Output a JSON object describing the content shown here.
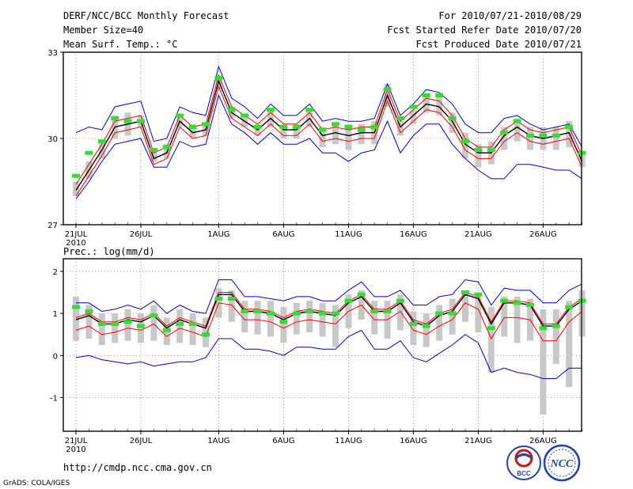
{
  "header": {
    "title": "DERF/NCC/BCC Monthly Forecast",
    "member_size": "Member Size=40",
    "variable": "Mean Surf. Temp.: °C",
    "period": "For 2010/07/21-2010/08/29",
    "fcst_started": "Fcst Started Refer Date 2010/07/20",
    "fcst_produced": "Fcst Produced Date 2010/07/21"
  },
  "footer": {
    "url": "http://cmdp.ncc.cma.gov.cn",
    "grads": "GrADS: COLA/IGES",
    "logo_bcc": "BCC",
    "logo_ncc": "NCC"
  },
  "colors": {
    "mean": "#000000",
    "spread": "#ff0000",
    "envelope": "#0000cc",
    "obs": "#33dd33",
    "box": "#c8c8c8"
  },
  "chart_data": [
    {
      "type": "line",
      "title": "Mean Surf. Temp.: °C",
      "ylim": [
        27,
        33
      ],
      "yticks": [
        27,
        30,
        33
      ],
      "x_tick_labels": [
        "21JUL",
        "26JUL",
        "1AUG",
        "6AUG",
        "11AUG",
        "16AUG",
        "21AUG",
        "26AUG"
      ],
      "x_tick_days": [
        0,
        5,
        11,
        16,
        21,
        26,
        31,
        36
      ],
      "x_year_label": "2010",
      "days": 40,
      "series": [
        {
          "name": "ensemble mean",
          "values": [
            28.2,
            28.9,
            29.6,
            30.4,
            30.5,
            30.6,
            29.3,
            29.5,
            30.6,
            30.2,
            30.3,
            32.0,
            30.9,
            30.6,
            30.3,
            30.7,
            30.3,
            30.3,
            30.7,
            30.1,
            30.2,
            30.1,
            30.2,
            30.2,
            31.5,
            30.4,
            30.8,
            31.2,
            31.1,
            30.6,
            29.8,
            29.5,
            29.5,
            30.1,
            30.4,
            30.1,
            30.0,
            30.1,
            30.2,
            29.2
          ]
        },
        {
          "name": "upper spread",
          "values": [
            28.4,
            29.1,
            29.8,
            30.6,
            30.7,
            30.8,
            29.5,
            29.7,
            30.8,
            30.4,
            30.5,
            32.2,
            31.1,
            30.8,
            30.5,
            30.9,
            30.5,
            30.5,
            30.9,
            30.3,
            30.4,
            30.3,
            30.4,
            30.4,
            31.7,
            30.6,
            31.0,
            31.4,
            31.3,
            30.8,
            30.0,
            29.7,
            29.7,
            30.3,
            30.6,
            30.3,
            30.2,
            30.3,
            30.4,
            29.4
          ]
        },
        {
          "name": "lower spread",
          "values": [
            28.0,
            28.7,
            29.4,
            30.2,
            30.3,
            30.4,
            29.1,
            29.3,
            30.4,
            30.0,
            30.1,
            31.8,
            30.7,
            30.4,
            30.1,
            30.5,
            30.1,
            30.1,
            30.5,
            29.9,
            30.0,
            29.9,
            30.0,
            30.0,
            31.3,
            30.2,
            30.6,
            31.0,
            30.9,
            30.4,
            29.6,
            29.3,
            29.3,
            29.9,
            30.2,
            29.9,
            29.8,
            29.9,
            30.0,
            29.0
          ]
        },
        {
          "name": "member max",
          "values": [
            30.2,
            30.4,
            30.3,
            31.1,
            31.2,
            31.3,
            29.9,
            30.0,
            31.1,
            30.9,
            30.8,
            32.5,
            31.4,
            31.1,
            30.7,
            31.2,
            30.8,
            30.8,
            31.2,
            30.6,
            30.7,
            30.6,
            30.6,
            30.7,
            31.9,
            30.8,
            31.2,
            31.7,
            31.6,
            31.2,
            30.5,
            30.2,
            30.2,
            30.7,
            30.8,
            30.5,
            30.3,
            30.4,
            30.5,
            29.7
          ]
        },
        {
          "name": "member min",
          "values": [
            27.9,
            28.5,
            29.2,
            29.8,
            29.9,
            30.0,
            29.0,
            29.0,
            29.9,
            29.7,
            29.8,
            31.5,
            30.5,
            30.2,
            29.8,
            30.2,
            29.8,
            29.8,
            30.0,
            29.5,
            29.5,
            29.2,
            29.5,
            29.6,
            30.6,
            29.5,
            30.1,
            30.5,
            30.5,
            29.8,
            29.3,
            28.9,
            28.6,
            28.6,
            29.1,
            29.1,
            29.0,
            28.9,
            28.9,
            28.6
          ]
        },
        {
          "name": "percentile box top",
          "values": [
            28.5,
            29.2,
            29.9,
            30.8,
            30.9,
            30.8,
            29.6,
            29.8,
            30.8,
            30.5,
            30.5,
            32.2,
            31.1,
            30.8,
            30.5,
            31.0,
            30.5,
            30.5,
            31.0,
            30.4,
            30.5,
            30.5,
            30.5,
            30.6,
            31.9,
            30.6,
            31.0,
            31.5,
            31.5,
            30.9,
            30.2,
            29.8,
            29.9,
            30.4,
            30.7,
            30.4,
            30.4,
            30.4,
            30.6,
            29.5
          ]
        },
        {
          "name": "percentile box bottom",
          "values": [
            28.0,
            28.6,
            29.3,
            30.0,
            30.1,
            30.4,
            29.2,
            29.3,
            30.4,
            30.0,
            30.1,
            31.7,
            30.7,
            30.4,
            30.1,
            30.4,
            30.0,
            30.0,
            30.4,
            29.7,
            29.8,
            29.6,
            29.8,
            29.8,
            31.1,
            30.1,
            30.5,
            30.9,
            30.8,
            30.2,
            29.3,
            29.0,
            29.1,
            29.6,
            29.9,
            29.6,
            29.6,
            29.6,
            29.7,
            29.0
          ]
        },
        {
          "name": "observed",
          "values": [
            28.7,
            29.5,
            29.9,
            30.7,
            30.6,
            30.6,
            29.6,
            29.7,
            30.8,
            30.4,
            30.5,
            32.1,
            31.0,
            30.8,
            30.4,
            31.0,
            30.4,
            30.4,
            31.0,
            30.3,
            30.5,
            30.4,
            30.3,
            30.4,
            31.7,
            30.7,
            31.1,
            31.5,
            31.5,
            30.7,
            29.9,
            29.6,
            29.6,
            30.2,
            30.6,
            30.1,
            30.1,
            30.1,
            30.4,
            29.5
          ]
        }
      ]
    },
    {
      "type": "line",
      "title": "Prec.: log(mm/d)",
      "ylim": [
        -1.8,
        2.3
      ],
      "yticks": [
        -1,
        0,
        1,
        2
      ],
      "x_tick_labels": [
        "21JUL",
        "26JUL",
        "1AUG",
        "6AUG",
        "11AUG",
        "16AUG",
        "21AUG",
        "26AUG"
      ],
      "x_tick_days": [
        0,
        5,
        11,
        16,
        21,
        26,
        31,
        36
      ],
      "x_year_label": "2010",
      "days": 40,
      "series": [
        {
          "name": "ensemble mean",
          "values": [
            0.85,
            0.95,
            0.75,
            0.75,
            0.85,
            0.8,
            0.95,
            0.65,
            0.85,
            0.75,
            0.65,
            1.45,
            1.45,
            1.05,
            1.05,
            1.0,
            0.85,
            1.0,
            1.05,
            1.0,
            0.95,
            1.25,
            1.4,
            1.05,
            1.05,
            1.25,
            0.8,
            0.7,
            0.95,
            1.05,
            1.45,
            1.35,
            0.75,
            1.25,
            1.25,
            1.2,
            0.7,
            0.7,
            1.1,
            1.3
          ]
        },
        {
          "name": "upper spread",
          "values": [
            0.9,
            1.0,
            0.8,
            0.8,
            0.9,
            0.85,
            1.0,
            0.7,
            0.9,
            0.8,
            0.7,
            1.5,
            1.5,
            1.1,
            1.1,
            1.05,
            0.9,
            1.05,
            1.1,
            1.05,
            1.0,
            1.3,
            1.45,
            1.1,
            1.1,
            1.3,
            0.85,
            0.75,
            1.0,
            1.1,
            1.5,
            1.4,
            0.8,
            1.3,
            1.3,
            1.25,
            0.75,
            0.75,
            1.15,
            1.35
          ]
        },
        {
          "name": "lower spread",
          "values": [
            0.6,
            0.7,
            0.5,
            0.55,
            0.65,
            0.6,
            0.75,
            0.45,
            0.65,
            0.55,
            0.45,
            1.25,
            1.2,
            0.85,
            0.85,
            0.8,
            0.65,
            0.8,
            0.85,
            0.8,
            0.75,
            1.05,
            1.2,
            0.85,
            0.85,
            1.05,
            0.6,
            0.5,
            0.7,
            0.85,
            1.25,
            1.1,
            0.4,
            0.9,
            0.9,
            0.85,
            0.35,
            0.35,
            0.8,
            1.05
          ]
        },
        {
          "name": "member max",
          "values": [
            1.25,
            1.25,
            1.05,
            1.1,
            1.2,
            1.1,
            1.3,
            1.0,
            1.2,
            1.05,
            1.0,
            1.8,
            1.8,
            1.4,
            1.4,
            1.35,
            1.3,
            1.4,
            1.4,
            1.3,
            1.3,
            1.55,
            1.75,
            1.4,
            1.4,
            1.55,
            1.2,
            1.2,
            1.4,
            1.45,
            1.8,
            1.75,
            1.2,
            1.6,
            1.55,
            1.55,
            1.25,
            1.25,
            1.55,
            1.7
          ]
        },
        {
          "name": "member min",
          "values": [
            -0.05,
            0.0,
            -0.1,
            -0.15,
            -0.2,
            -0.15,
            -0.25,
            -0.2,
            -0.15,
            -0.15,
            -0.05,
            0.4,
            0.4,
            0.15,
            0.15,
            0.1,
            0.0,
            0.2,
            0.2,
            0.15,
            0.15,
            0.45,
            0.6,
            0.15,
            0.15,
            0.35,
            -0.05,
            -0.15,
            0.05,
            0.25,
            0.5,
            0.3,
            -0.4,
            -0.3,
            -0.4,
            -0.45,
            -0.55,
            -0.55,
            -0.3,
            -0.3
          ]
        },
        {
          "name": "percentile box top",
          "values": [
            1.4,
            1.2,
            1.0,
            1.0,
            1.1,
            1.0,
            1.2,
            0.9,
            1.1,
            1.0,
            0.9,
            1.6,
            1.55,
            1.3,
            1.3,
            1.3,
            1.15,
            1.25,
            1.3,
            1.25,
            1.2,
            1.45,
            1.55,
            1.3,
            1.3,
            1.45,
            1.05,
            1.0,
            1.2,
            1.35,
            1.55,
            1.5,
            1.15,
            1.4,
            1.4,
            1.35,
            1.1,
            1.1,
            1.3,
            1.55
          ]
        },
        {
          "name": "percentile box bottom",
          "values": [
            0.35,
            0.4,
            0.25,
            0.3,
            0.35,
            0.3,
            0.35,
            0.25,
            0.3,
            0.25,
            0.2,
            0.9,
            0.8,
            0.55,
            0.5,
            0.45,
            0.3,
            0.5,
            0.55,
            0.45,
            0.2,
            0.65,
            0.85,
            0.5,
            0.4,
            0.6,
            0.25,
            0.2,
            0.35,
            0.5,
            0.8,
            0.55,
            -0.4,
            0.45,
            0.3,
            0.35,
            -1.4,
            -0.2,
            -0.75,
            0.45
          ]
        },
        {
          "name": "observed",
          "values": [
            1.15,
            1.05,
            0.75,
            0.75,
            0.8,
            0.7,
            0.95,
            0.6,
            0.75,
            0.75,
            0.5,
            1.35,
            1.35,
            1.05,
            1.05,
            1.0,
            0.8,
            1.0,
            1.05,
            1.0,
            1.0,
            1.3,
            1.45,
            1.05,
            1.05,
            1.3,
            0.75,
            0.7,
            1.0,
            1.0,
            1.5,
            1.45,
            0.65,
            1.3,
            1.25,
            1.2,
            0.65,
            0.7,
            1.15,
            1.3
          ]
        }
      ]
    }
  ]
}
